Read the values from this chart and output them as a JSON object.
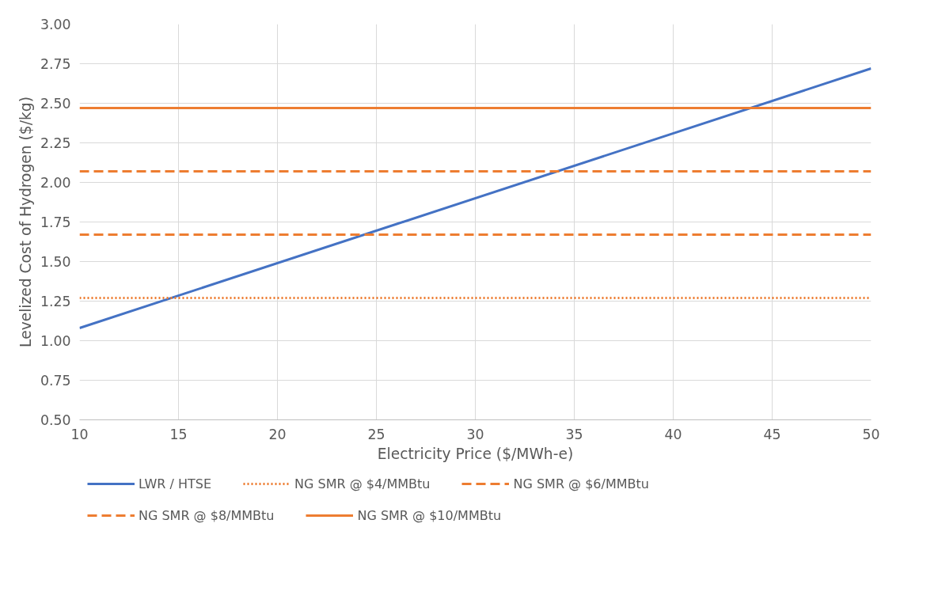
{
  "chart_data": {
    "type": "line",
    "xlabel": "Electricity Price ($/MWh-e)",
    "ylabel": "Levelized Cost of Hydrogen ($/kg)",
    "xlim": [
      10,
      50
    ],
    "xticks": [
      10,
      15,
      20,
      25,
      30,
      35,
      40,
      45,
      50
    ],
    "ylim": [
      0.5,
      3.0
    ],
    "yticks": [
      {
        "value": 0.5,
        "label": "0.50"
      },
      {
        "value": 0.75,
        "label": "0.75"
      },
      {
        "value": 1.0,
        "label": "1.00"
      },
      {
        "value": 1.25,
        "label": "1.25"
      },
      {
        "value": 1.5,
        "label": "1.50"
      },
      {
        "value": 1.75,
        "label": "1.75"
      },
      {
        "value": 2.0,
        "label": "2.00"
      },
      {
        "value": 2.25,
        "label": "2.25"
      },
      {
        "value": 2.5,
        "label": "2.50"
      },
      {
        "value": 2.75,
        "label": "2.75"
      },
      {
        "value": 3.0,
        "label": "3.00"
      }
    ],
    "x": [
      10,
      50
    ],
    "series": [
      {
        "name": "LWR / HTSE",
        "color": "#4472c4",
        "values": [
          1.08,
          2.72
        ],
        "line_style": "solid"
      },
      {
        "name": "NG SMR @ $4/MMBtu",
        "color": "#ed7d31",
        "values": [
          1.27,
          1.27
        ],
        "line_style": "dotted"
      },
      {
        "name": "NG SMR @ $6/MMBtu",
        "color": "#ed7d31",
        "values": [
          1.67,
          1.67
        ],
        "line_style": "dashed"
      },
      {
        "name": "NG SMR @ $8/MMBtu",
        "color": "#ed7d31",
        "values": [
          2.07,
          2.07
        ],
        "line_style": "dashed"
      },
      {
        "name": "NG SMR @ $10/MMBtu",
        "color": "#ed7d31",
        "values": [
          2.47,
          2.47
        ],
        "line_style": "solid"
      }
    ],
    "grid": true,
    "legend": "bottom",
    "marker": "none"
  }
}
